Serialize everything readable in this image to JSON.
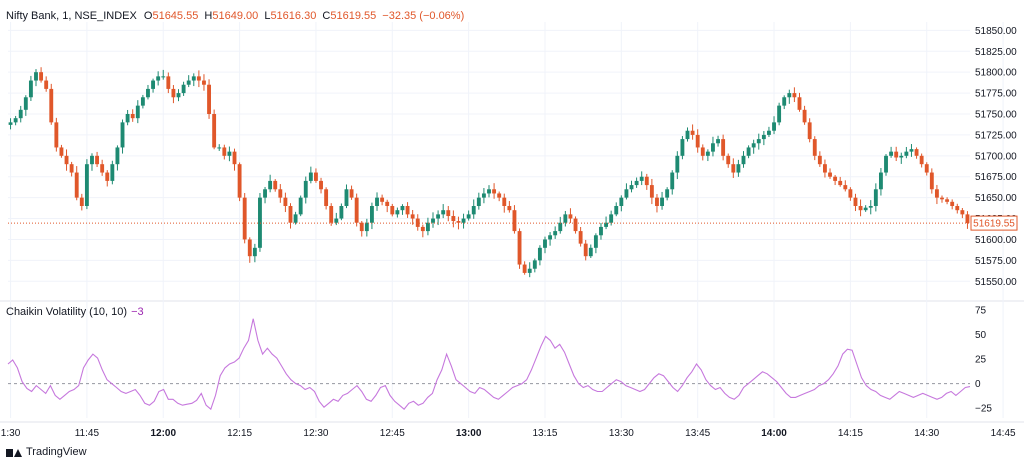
{
  "header": {
    "symbol": "Nifty Bank, 1, NSE_INDEX",
    "open_label": "O",
    "open": "51645.55",
    "high_label": "H",
    "high": "51649.00",
    "low_label": "L",
    "low": "51616.30",
    "close_label": "C",
    "close": "51619.55",
    "change": "−32.35 (−0.06%)"
  },
  "indicator": {
    "name": "Chaikin Volatility (10, 10)",
    "value": "−3"
  },
  "brand": {
    "name": "TradingView"
  },
  "last_price_label": "51619.55",
  "colors": {
    "up": "#26a69a",
    "down": "#e0572a",
    "line": "#c678dd",
    "upDark": "#1e8a72"
  },
  "chart_data": [
    {
      "type": "candlestick",
      "title": "Nifty Bank, 1, NSE_INDEX",
      "ylim": [
        51530,
        51860
      ],
      "y_ticks": [
        "51550.00",
        "51575.00",
        "51600.00",
        "51625.00",
        "51650.00",
        "51675.00",
        "51700.00",
        "51725.00",
        "51750.00",
        "51775.00",
        "51800.00",
        "51825.00",
        "51850.00"
      ],
      "x_ticks": [
        {
          "label": "1:30",
          "i": 0,
          "bold": false
        },
        {
          "label": "11:45",
          "i": 15,
          "bold": false
        },
        {
          "label": "12:00",
          "i": 30,
          "bold": true
        },
        {
          "label": "12:15",
          "i": 45,
          "bold": false
        },
        {
          "label": "12:30",
          "i": 60,
          "bold": false
        },
        {
          "label": "12:45",
          "i": 75,
          "bold": false
        },
        {
          "label": "13:00",
          "i": 90,
          "bold": true
        },
        {
          "label": "13:15",
          "i": 105,
          "bold": false
        },
        {
          "label": "13:30",
          "i": 120,
          "bold": false
        },
        {
          "label": "13:45",
          "i": 135,
          "bold": false
        },
        {
          "label": "14:00",
          "i": 150,
          "bold": true
        },
        {
          "label": "14:15",
          "i": 165,
          "bold": false
        },
        {
          "label": "14:30",
          "i": 180,
          "bold": false
        },
        {
          "label": "14:45",
          "i": 195,
          "bold": false
        }
      ],
      "closes": [
        51740,
        51745,
        51755,
        51770,
        51790,
        51800,
        51790,
        51780,
        51740,
        51710,
        51700,
        51690,
        51680,
        51650,
        51640,
        51690,
        51700,
        51690,
        51680,
        51670,
        51690,
        51710,
        51740,
        51750,
        51745,
        51760,
        51770,
        51780,
        51790,
        51795,
        51795,
        51780,
        51770,
        51775,
        51785,
        51790,
        51795,
        51790,
        51785,
        51750,
        51710,
        51710,
        51700,
        51705,
        51690,
        51650,
        51600,
        51580,
        51590,
        51650,
        51660,
        51670,
        51660,
        51650,
        51640,
        51620,
        51630,
        51650,
        51670,
        51680,
        51670,
        51660,
        51640,
        51620,
        51625,
        51640,
        51660,
        51650,
        51620,
        51610,
        51620,
        51640,
        51650,
        51645,
        51640,
        51630,
        51635,
        51640,
        51630,
        51625,
        51615,
        51610,
        51620,
        51625,
        51630,
        51635,
        51628,
        51622,
        51620,
        51625,
        51630,
        51640,
        51650,
        51655,
        51660,
        51655,
        51650,
        51640,
        51635,
        51610,
        51570,
        51560,
        51565,
        51575,
        51590,
        51600,
        51605,
        51610,
        51620,
        51630,
        51625,
        51610,
        51595,
        51580,
        51590,
        51605,
        51615,
        51620,
        51630,
        51640,
        51650,
        51660,
        51665,
        51670,
        51675,
        51665,
        51650,
        51640,
        51650,
        51660,
        51680,
        51700,
        51720,
        51730,
        51725,
        51710,
        51700,
        51705,
        51715,
        51720,
        51700,
        51690,
        51680,
        51690,
        51700,
        51710,
        51715,
        51720,
        51725,
        51730,
        51740,
        51760,
        51770,
        51775,
        51770,
        51755,
        51740,
        51720,
        51700,
        51690,
        51680,
        51675,
        51670,
        51665,
        51660,
        51650,
        51640,
        51635,
        51638,
        51640,
        51660,
        51680,
        51700,
        51705,
        51698,
        51700,
        51705,
        51708,
        51700,
        51690,
        51680,
        51660,
        51650,
        51648,
        51645,
        51640,
        51635,
        51630,
        51619.55
      ],
      "series_open_offset": 0
    },
    {
      "type": "line",
      "title": "Chaikin Volatility (10, 10)",
      "ylim": [
        -35,
        80
      ],
      "y_ticks": [
        "75",
        "50",
        "25",
        "0",
        "−25"
      ],
      "zero_line": true,
      "values": [
        20,
        24,
        16,
        2,
        -5,
        -8,
        -2,
        -6,
        -10,
        -2,
        -12,
        -16,
        -12,
        -8,
        -6,
        -2,
        16,
        24,
        30,
        26,
        14,
        4,
        0,
        -4,
        -8,
        -10,
        -8,
        -6,
        -12,
        -20,
        -22,
        -18,
        -8,
        -6,
        -16,
        -16,
        -20,
        -22,
        -21,
        -20,
        -17,
        -10,
        -22,
        -26,
        -12,
        8,
        16,
        20,
        22,
        26,
        36,
        44,
        66,
        44,
        30,
        36,
        30,
        26,
        18,
        10,
        4,
        0,
        -2,
        -6,
        -4,
        -8,
        -18,
        -24,
        -20,
        -16,
        -18,
        -12,
        -10,
        -6,
        -2,
        -8,
        -16,
        -18,
        -12,
        -4,
        -2,
        -12,
        -18,
        -22,
        -26,
        -20,
        -18,
        -22,
        -20,
        -14,
        -10,
        4,
        14,
        30,
        18,
        4,
        0,
        -4,
        -8,
        -10,
        -4,
        -6,
        -10,
        -14,
        -16,
        -12,
        -8,
        -4,
        -2,
        0,
        4,
        14,
        26,
        38,
        48,
        44,
        36,
        40,
        32,
        20,
        8,
        0,
        -4,
        -2,
        -6,
        -8,
        -8,
        -4,
        0,
        4,
        2,
        -2,
        -4,
        -6,
        -8,
        -6,
        0,
        6,
        10,
        8,
        2,
        -4,
        -8,
        -2,
        6,
        12,
        20,
        14,
        4,
        -2,
        -6,
        -4,
        -10,
        -14,
        -16,
        -12,
        -4,
        0,
        4,
        8,
        12,
        10,
        6,
        2,
        -4,
        -10,
        -14,
        -14,
        -12,
        -10,
        -8,
        -6,
        -2,
        0,
        4,
        10,
        18,
        30,
        35,
        34,
        20,
        6,
        -2,
        -6,
        -8,
        -12,
        -14,
        -16,
        -12,
        -8,
        -10,
        -12,
        -14,
        -12,
        -10,
        -12,
        -14,
        -16,
        -14,
        -10,
        -8,
        -12,
        -8,
        -4,
        -3
      ]
    }
  ]
}
